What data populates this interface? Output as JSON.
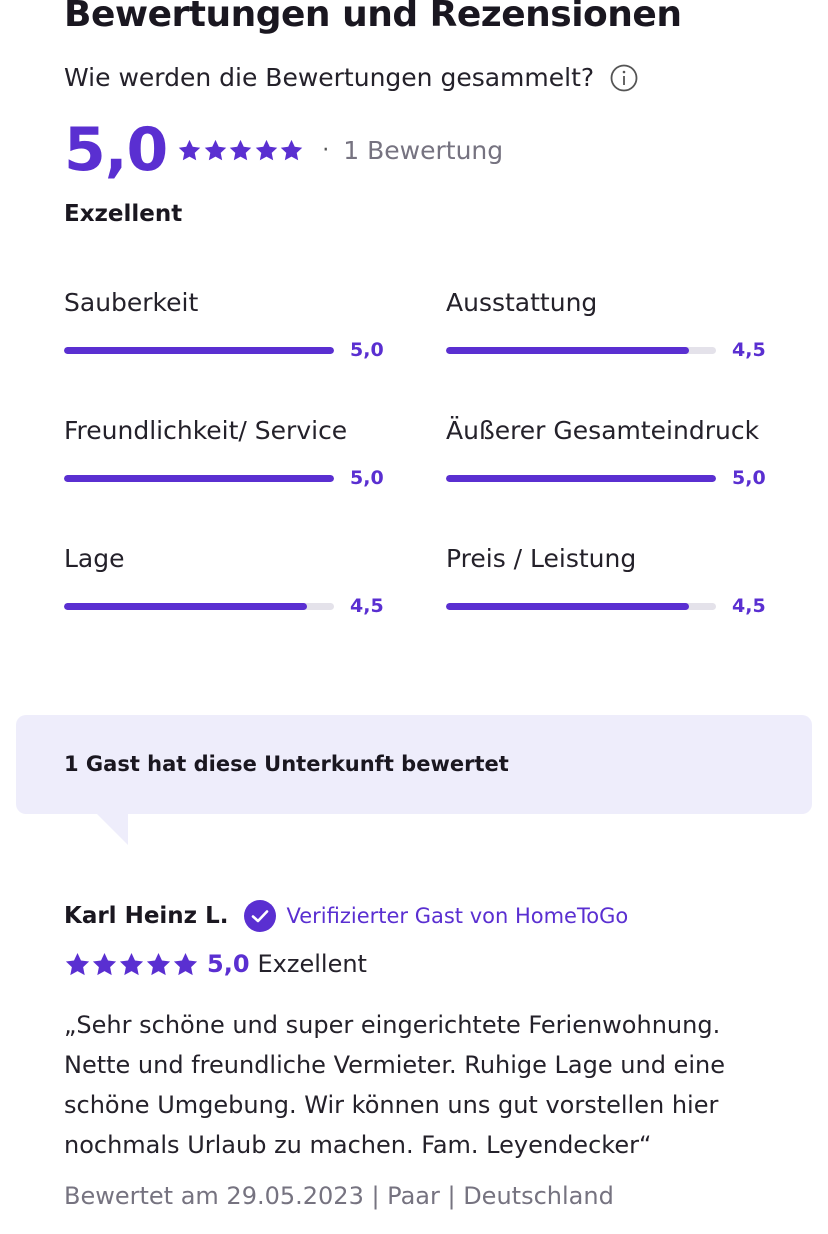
{
  "header": {
    "title": "Bewertungen und Rezensionen",
    "how_collected": "Wie werden die Bewertungen gesammelt?",
    "info_icon": "info-circle-icon"
  },
  "summary": {
    "score": "5,0",
    "star_rating": 5,
    "separator": "·",
    "count": "1 Bewertung",
    "rating_word": "Exzellent"
  },
  "criteria": [
    {
      "label": "Sauberkeit",
      "value": "5,0",
      "score": 5.0
    },
    {
      "label": "Ausstattung",
      "value": "4,5",
      "score": 4.5
    },
    {
      "label": "Freundlichkeit/ Service",
      "value": "5,0",
      "score": 5.0
    },
    {
      "label": "Äußerer Gesamteindruck",
      "value": "5,0",
      "score": 5.0
    },
    {
      "label": "Lage",
      "value": "4,5",
      "score": 4.5
    },
    {
      "label": "Preis / Leistung",
      "value": "4,5",
      "score": 4.5
    }
  ],
  "guest_box": {
    "text": "1 Gast hat diese Unterkunft bewertet"
  },
  "review": {
    "name": "Karl Heinz L.",
    "verified_icon": "verified-check-icon",
    "verified_text": "Verifizierter Gast von HomeToGo",
    "star_rating": 5,
    "score": "5,0",
    "rating_word": "Exzellent",
    "text": "„Sehr schöne und super eingerichtete Ferienwohnung. Nette und freundliche Vermieter. Ruhige Lage und eine schöne Umgebung. Wir können uns gut vorstellen hier nochmals Urlaub zu machen. Fam. Leyendecker“",
    "meta": "Bewertet am 29.05.2023 | Paar | Deutschland"
  },
  "colors": {
    "accent": "#5a2fd1",
    "bar_track": "#e4e2ea",
    "guest_box_bg": "#eeedfb",
    "muted_text": "#767380"
  }
}
